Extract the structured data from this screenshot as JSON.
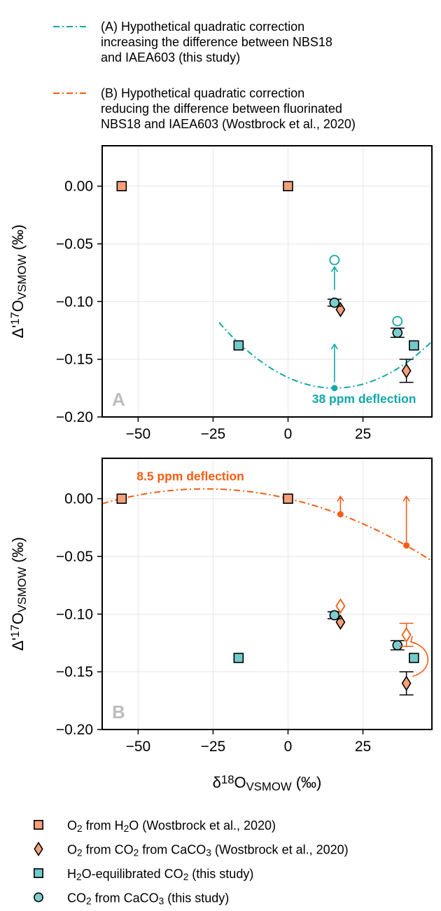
{
  "colors": {
    "teal": "#14a7a8",
    "orange": "#f75c12",
    "o2_h2o_fill": "#f5a07a",
    "o2_co2_fill": "#f5a07a",
    "h2o_co2_fill": "#72cbcb",
    "co2_caco3_fill": "#7dcdd0",
    "panel_letter": "#bdbdbd",
    "grid": "#e6e6e6"
  },
  "top_legend": [
    {
      "key": "A",
      "color": "#14a7a8",
      "style": "dashdot",
      "lines": [
        "(A) Hypothetical quadratic correction",
        "increasing the difference between NBS18",
        " and IAEA603 (this study)"
      ]
    },
    {
      "key": "B",
      "color": "#f75c12",
      "style": "dashdot",
      "lines": [
        "(B) Hypothetical quadratic correction",
        "reducing the difference between fluorinated",
        "NBS18 and IAEA603 (Wostbrock et al., 2020)"
      ]
    }
  ],
  "bottom_legend": [
    {
      "marker": "square",
      "fill": "#f5a07a",
      "label_parts": [
        [
          "O",
          ""
        ],
        [
          "2",
          "sub"
        ],
        [
          " from H",
          ""
        ],
        [
          "2",
          "sub"
        ],
        [
          "O (Wostbrock et al., 2020)",
          ""
        ]
      ]
    },
    {
      "marker": "diamond",
      "fill": "#f5a07a",
      "label_parts": [
        [
          "O",
          ""
        ],
        [
          "2",
          "sub"
        ],
        [
          " from CO",
          ""
        ],
        [
          "2",
          "sub"
        ],
        [
          " from CaCO",
          ""
        ],
        [
          "3",
          "sub"
        ],
        [
          " (Wostbrock et al., 2020)",
          ""
        ]
      ]
    },
    {
      "marker": "square",
      "fill": "#72cbcb",
      "label_parts": [
        [
          "H",
          ""
        ],
        [
          "2",
          "sub"
        ],
        [
          "O-equilibrated CO",
          ""
        ],
        [
          "2",
          "sub"
        ],
        [
          " (this study)",
          ""
        ]
      ]
    },
    {
      "marker": "circle",
      "fill": "#7dcdd0",
      "label_parts": [
        [
          "CO",
          ""
        ],
        [
          "2",
          "sub"
        ],
        [
          " from CaCO",
          ""
        ],
        [
          "3",
          "sub"
        ],
        [
          " (this study)",
          ""
        ]
      ]
    }
  ],
  "chart_data": [
    {
      "type": "scatter",
      "panel_letter": "A",
      "xlim": [
        -62,
        48
      ],
      "ylim": [
        -0.2,
        0.035
      ],
      "x_ticks": [
        -50,
        -25,
        0,
        25
      ],
      "x_tick_labels": [
        "−50",
        "−25",
        "0",
        "25"
      ],
      "y_ticks": [
        0.0,
        -0.05,
        -0.1,
        -0.15,
        -0.2
      ],
      "y_tick_labels": [
        "0.00",
        "−0.05",
        "−0.10",
        "−0.15",
        "−0.20"
      ],
      "ylabel_parts": [
        [
          "Δ'",
          ""
        ],
        [
          "17",
          "sup"
        ],
        [
          "O",
          ""
        ],
        [
          "VSMOW",
          "sub"
        ],
        [
          " (‰)",
          ""
        ]
      ],
      "xlabel_parts": [],
      "grid": true,
      "annotation": {
        "text": "38 ppm deflection",
        "x": 8,
        "y": -0.188
      },
      "curve": {
        "vertex_x": 15.5,
        "vertex_y": -0.175,
        "a": 3.83e-05,
        "x_range": [
          -23,
          48
        ],
        "color_key": "teal"
      },
      "series": [
        {
          "marker": "square",
          "fill": "#f5a07a",
          "points": [
            {
              "x": -55.5,
              "y": 0.0
            },
            {
              "x": 0.0,
              "y": 0.0
            }
          ]
        },
        {
          "marker": "diamond",
          "fill": "#f5a07a",
          "points": [
            {
              "x": 17.5,
              "y": -0.107,
              "yerr": 0
            },
            {
              "x": 39.5,
              "y": -0.16,
              "yerr": 0.01
            }
          ]
        },
        {
          "marker": "square",
          "fill": "#72cbcb",
          "points": [
            {
              "x": -16.5,
              "y": -0.138
            },
            {
              "x": 42.0,
              "y": -0.138
            }
          ]
        },
        {
          "marker": "circle",
          "fill": "#7dcdd0",
          "points": [
            {
              "x": 15.5,
              "y": -0.101,
              "yerr": 0.003
            },
            {
              "x": 36.5,
              "y": -0.127,
              "yerr": 0.004
            }
          ]
        }
      ],
      "open_markers": [
        {
          "marker": "circle",
          "x": 15.5,
          "y": -0.064,
          "color_key": "teal"
        },
        {
          "marker": "circle",
          "x": 36.5,
          "y": -0.117,
          "color_key": "teal"
        }
      ],
      "curve_points": [
        {
          "x": 15.5,
          "y": -0.175
        }
      ],
      "arrows": [
        {
          "x": 15.5,
          "y0": -0.09,
          "y1": -0.07,
          "color_key": "teal"
        },
        {
          "x": 15.5,
          "y0": -0.17,
          "y1": -0.137,
          "color_key": "teal"
        }
      ]
    },
    {
      "type": "scatter",
      "panel_letter": "B",
      "xlim": [
        -62,
        48
      ],
      "ylim": [
        -0.2,
        0.035
      ],
      "x_ticks": [
        -50,
        -25,
        0,
        25
      ],
      "x_tick_labels": [
        "−50",
        "−25",
        "0",
        "25"
      ],
      "y_ticks": [
        0.0,
        -0.05,
        -0.1,
        -0.15,
        -0.2
      ],
      "y_tick_labels": [
        "0.00",
        "−0.05",
        "−0.10",
        "−0.15",
        "−0.20"
      ],
      "ylabel_parts": [
        [
          "Δ'",
          ""
        ],
        [
          "17",
          "sup"
        ],
        [
          "O",
          ""
        ],
        [
          "VSMOW",
          "sub"
        ],
        [
          " (‰)",
          ""
        ]
      ],
      "xlabel_parts": [
        [
          "δ",
          ""
        ],
        [
          "18",
          "sup"
        ],
        [
          "O",
          ""
        ],
        [
          "VSMOW",
          "sub"
        ],
        [
          " (‰)",
          ""
        ]
      ],
      "grid": true,
      "annotation": {
        "text": "8.5 ppm deflection",
        "x": -50.5,
        "y": 0.016
      },
      "curve": {
        "vertex_x": -27.7,
        "vertex_y": 0.0085,
        "a": -1.09e-05,
        "x_range": [
          -62,
          48
        ],
        "color_key": "orange"
      },
      "series": [
        {
          "marker": "square",
          "fill": "#f5a07a",
          "points": [
            {
              "x": -55.5,
              "y": 0.0
            },
            {
              "x": 0.0,
              "y": 0.0
            }
          ]
        },
        {
          "marker": "diamond",
          "fill": "#f5a07a",
          "points": [
            {
              "x": 17.5,
              "y": -0.107,
              "yerr": 0
            },
            {
              "x": 39.5,
              "y": -0.16,
              "yerr": 0.01
            }
          ]
        },
        {
          "marker": "square",
          "fill": "#72cbcb",
          "points": [
            {
              "x": -16.5,
              "y": -0.138
            },
            {
              "x": 42.0,
              "y": -0.138
            }
          ]
        },
        {
          "marker": "circle",
          "fill": "#7dcdd0",
          "points": [
            {
              "x": 15.5,
              "y": -0.101,
              "yerr": 0.003
            },
            {
              "x": 36.5,
              "y": -0.127,
              "yerr": 0.004
            }
          ]
        }
      ],
      "open_markers": [
        {
          "marker": "diamond",
          "x": 17.5,
          "y": -0.093,
          "color_key": "orange"
        },
        {
          "marker": "diamond",
          "x": 39.5,
          "y": -0.118,
          "color_key": "orange",
          "yerr": 0.01
        }
      ],
      "curve_points": [
        {
          "x": 17.5,
          "y": -0.0135
        },
        {
          "x": 39.5,
          "y": -0.0405
        }
      ],
      "arrows": [
        {
          "x": 17.5,
          "y0": -0.011,
          "y1": 0.002,
          "color_key": "orange"
        },
        {
          "x": 39.5,
          "y0": -0.038,
          "y1": 0.002,
          "color_key": "orange"
        }
      ],
      "curved_arrow": {
        "from": {
          "x": 41.5,
          "y": -0.154
        },
        "to": {
          "x": 41.0,
          "y": -0.124
        },
        "bulge_x": 48.5,
        "color_key": "orange"
      }
    }
  ]
}
